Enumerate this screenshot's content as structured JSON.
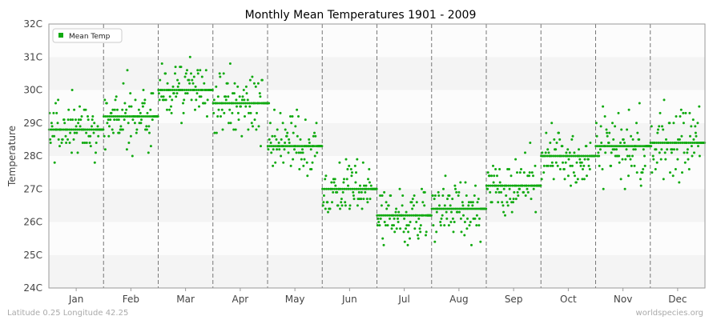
{
  "chart_data": {
    "type": "scatter",
    "title": "Monthly Mean Temperatures 1901 - 2009",
    "xlabel": "",
    "ylabel": "Temperature",
    "ylim": [
      24,
      32
    ],
    "y_ticks": [
      "24C",
      "25C",
      "26C",
      "27C",
      "28C",
      "29C",
      "30C",
      "31C",
      "32C"
    ],
    "categories": [
      "Jan",
      "Feb",
      "Mar",
      "Apr",
      "May",
      "Jun",
      "Jul",
      "Aug",
      "Sep",
      "Oct",
      "Nov",
      "Dec"
    ],
    "legend": {
      "label": "Mean Temp",
      "position": "top-left"
    },
    "series": [
      {
        "name": "Mean Temp",
        "color": "#11aa11",
        "monthly_mean": [
          28.8,
          29.2,
          30.0,
          29.6,
          28.3,
          27.0,
          26.2,
          26.4,
          27.1,
          28.0,
          28.3,
          28.4
        ]
      }
    ],
    "grid": "alternating horizontal bands, dashed vertical month separators",
    "footer_left": "Latitude 0.25 Longitude 42.25",
    "footer_right": "worldspecies.org"
  }
}
